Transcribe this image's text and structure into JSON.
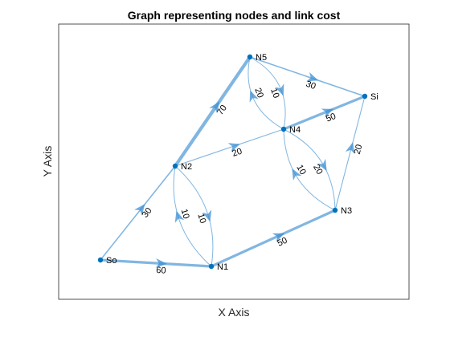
{
  "title": "Graph representing nodes and link cost",
  "xlabel": "X Axis",
  "ylabel": "Y Axis",
  "colors": {
    "edge": "#3d8fd1",
    "node": "#0072bd",
    "frame": "#262626",
    "background": "#ffffff"
  },
  "nodes": [
    {
      "id": "So",
      "label": "So"
    },
    {
      "id": "N1",
      "label": "N1"
    },
    {
      "id": "N2",
      "label": "N2"
    },
    {
      "id": "N3",
      "label": "N3"
    },
    {
      "id": "N4",
      "label": "N4"
    },
    {
      "id": "N5",
      "label": "N5"
    },
    {
      "id": "Si",
      "label": "Si"
    }
  ],
  "edges": [
    {
      "from": "So",
      "to": "N2",
      "cost": "30"
    },
    {
      "from": "So",
      "to": "N1",
      "cost": "60"
    },
    {
      "from": "N2",
      "to": "N5",
      "cost": "70"
    },
    {
      "from": "N2",
      "to": "N4",
      "cost": "20"
    },
    {
      "from": "N2",
      "to": "N1",
      "cost": "10"
    },
    {
      "from": "N1",
      "to": "N2",
      "cost": "10"
    },
    {
      "from": "N1",
      "to": "N3",
      "cost": "50"
    },
    {
      "from": "N5",
      "to": "Si",
      "cost": "30"
    },
    {
      "from": "N5",
      "to": "N4",
      "cost": "10"
    },
    {
      "from": "N4",
      "to": "N5",
      "cost": "20"
    },
    {
      "from": "N4",
      "to": "Si",
      "cost": "50"
    },
    {
      "from": "N4",
      "to": "N3",
      "cost": "20"
    },
    {
      "from": "N3",
      "to": "N4",
      "cost": "10"
    },
    {
      "from": "N3",
      "to": "Si",
      "cost": "20"
    }
  ]
}
